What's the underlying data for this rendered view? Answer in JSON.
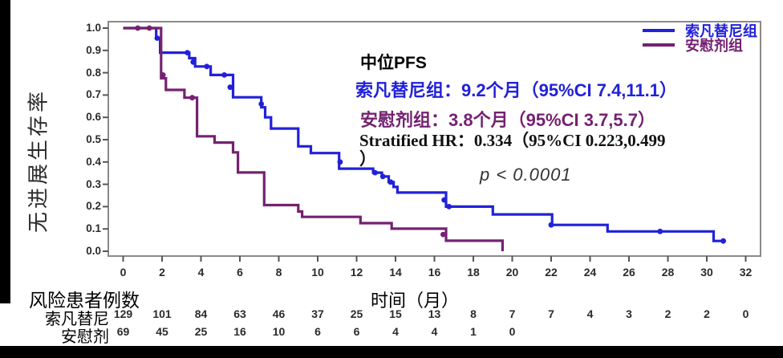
{
  "figure": {
    "y_axis_label": "无进展生存率",
    "x_axis_label": "时间（月）",
    "annotations": {
      "median_title": "中位PFS",
      "surufatinib_line": "索凡替尼组：9.2个月（95%CI 7.4,11.1）",
      "placebo_line": "安慰剂组：3.8个月（95%CI 3.7,5.7）",
      "hr_line": "Stratified HR：0.334（95%CI 0.223,0.499",
      "hr_line_continued": "）",
      "p_value": "p < 0.0001"
    },
    "legend": [
      {
        "label": "索凡替尼组",
        "color": "#2121d9"
      },
      {
        "label": "安慰剂组",
        "color": "#742271"
      }
    ],
    "risk_table": {
      "title": "风险患者例数",
      "rows": [
        {
          "label": "索凡替尼",
          "values": [
            129,
            101,
            84,
            63,
            46,
            37,
            25,
            15,
            13,
            8,
            7,
            7,
            4,
            3,
            2,
            2,
            0
          ]
        },
        {
          "label": "安慰剂",
          "values": [
            69,
            45,
            25,
            16,
            10,
            6,
            6,
            4,
            4,
            1,
            0
          ]
        }
      ]
    }
  },
  "chart_data": {
    "type": "line",
    "subtype": "kaplan-meier-step",
    "xlabel": "时间（月）",
    "ylabel": "无进展生存率",
    "xlim": [
      0,
      32
    ],
    "ylim": [
      0.0,
      1.0
    ],
    "x_ticks": [
      0,
      2,
      4,
      6,
      8,
      10,
      12,
      14,
      16,
      18,
      20,
      22,
      24,
      26,
      28,
      30,
      32
    ],
    "y_tick_labels": [
      "0.0",
      "0.1",
      "0.2",
      "0.3",
      "0.4",
      "0.5",
      "0.6",
      "0.7",
      "0.8",
      "0.9",
      "1.0"
    ],
    "grid": false,
    "legend_position": "top-right",
    "series": [
      {
        "name": "索凡替尼组",
        "color": "#2121d9",
        "median_months": 9.2,
        "ci95": [
          7.4,
          11.1
        ],
        "steps": [
          [
            0,
            1.0
          ],
          [
            1.7,
            0.955
          ],
          [
            1.9,
            0.89
          ],
          [
            3.4,
            0.865
          ],
          [
            3.7,
            0.828
          ],
          [
            4.5,
            0.79
          ],
          [
            5.65,
            0.69
          ],
          [
            7.1,
            0.645
          ],
          [
            7.3,
            0.6
          ],
          [
            7.6,
            0.55
          ],
          [
            9.0,
            0.47
          ],
          [
            9.65,
            0.44
          ],
          [
            11.1,
            0.37
          ],
          [
            12.85,
            0.352
          ],
          [
            13.3,
            0.335
          ],
          [
            13.65,
            0.31
          ],
          [
            13.9,
            0.288
          ],
          [
            14.1,
            0.263
          ],
          [
            16.6,
            0.2
          ],
          [
            19.0,
            0.165
          ],
          [
            22.05,
            0.118
          ],
          [
            24.9,
            0.089
          ],
          [
            30.35,
            0.046
          ],
          [
            30.85,
            0.046
          ]
        ],
        "censors": [
          [
            1.75,
            0.955
          ],
          [
            3.3,
            0.89
          ],
          [
            3.6,
            0.848
          ],
          [
            4.3,
            0.828
          ],
          [
            5.2,
            0.79
          ],
          [
            5.5,
            0.735
          ],
          [
            7.1,
            0.66
          ],
          [
            11.15,
            0.4
          ],
          [
            12.95,
            0.352
          ],
          [
            13.35,
            0.335
          ],
          [
            13.75,
            0.31
          ],
          [
            16.5,
            0.23
          ],
          [
            16.75,
            0.2
          ],
          [
            22.0,
            0.118
          ],
          [
            27.6,
            0.089
          ],
          [
            30.85,
            0.046
          ]
        ]
      },
      {
        "name": "安慰剂组",
        "color": "#742271",
        "median_months": 3.8,
        "ci95": [
          3.7,
          5.7
        ],
        "steps": [
          [
            0,
            1.0
          ],
          [
            1.95,
            0.775
          ],
          [
            2.2,
            0.723
          ],
          [
            3.15,
            0.688
          ],
          [
            3.8,
            0.515
          ],
          [
            4.7,
            0.487
          ],
          [
            5.65,
            0.443
          ],
          [
            5.9,
            0.353
          ],
          [
            7.25,
            0.207
          ],
          [
            9.0,
            0.178
          ],
          [
            9.2,
            0.154
          ],
          [
            12.2,
            0.126
          ],
          [
            13.8,
            0.101
          ],
          [
            16.6,
            0.047
          ],
          [
            19.5,
            0.0
          ]
        ],
        "censors": [
          [
            0.75,
            1.0
          ],
          [
            1.35,
            1.0
          ],
          [
            2.05,
            0.79
          ],
          [
            3.55,
            0.688
          ],
          [
            16.45,
            0.075
          ]
        ]
      }
    ],
    "stratified_hr": 0.334,
    "hr_ci95": [
      0.223,
      0.499
    ],
    "p_value_text": "p < 0.0001"
  }
}
